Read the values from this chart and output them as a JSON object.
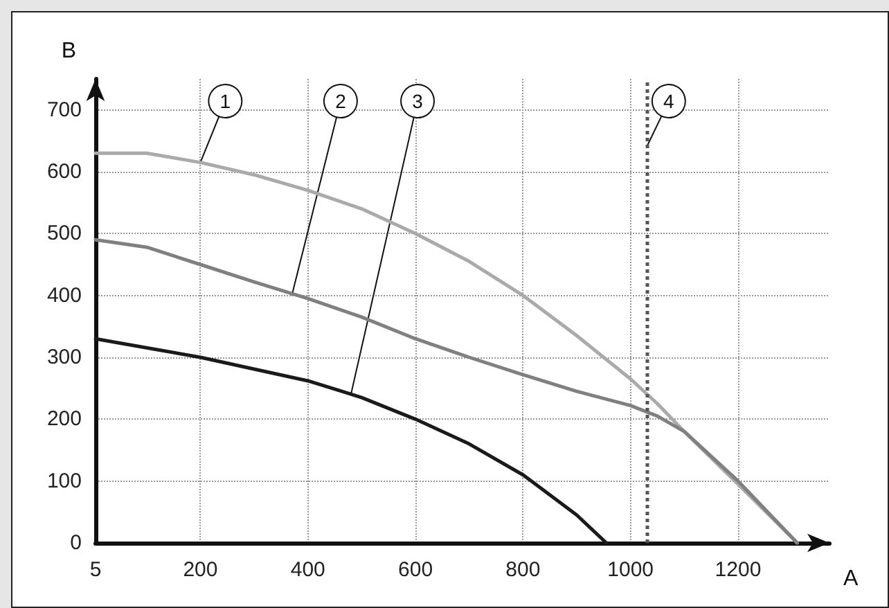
{
  "chart_data": {
    "type": "line",
    "xlabel": "A",
    "ylabel": "B",
    "xlim": [
      5,
      1370
    ],
    "xticks": [
      5,
      200,
      400,
      600,
      800,
      1000,
      1200
    ],
    "ylim": [
      0,
      750
    ],
    "yticks": [
      0,
      100,
      200,
      300,
      400,
      500,
      600,
      700
    ],
    "grid": true,
    "marker": "none",
    "line_style": "solid",
    "series": [
      {
        "color": "#aaaaaa",
        "x": [
          5,
          100,
          200,
          300,
          400,
          500,
          600,
          700,
          800,
          900,
          1000,
          1050,
          1100,
          1200,
          1310
        ],
        "values": [
          630,
          630,
          615,
          595,
          570,
          540,
          500,
          455,
          400,
          335,
          265,
          225,
          180,
          95,
          0
        ]
      },
      {
        "color": "#808080",
        "x": [
          5,
          100,
          200,
          300,
          400,
          500,
          600,
          700,
          800,
          900,
          1000,
          1050,
          1100,
          1200,
          1310
        ],
        "values": [
          490,
          478,
          450,
          422,
          395,
          365,
          330,
          300,
          272,
          245,
          222,
          205,
          180,
          100,
          0
        ]
      },
      {
        "color": "#1a1a1a",
        "x": [
          5,
          200,
          400,
          500,
          600,
          700,
          800,
          900,
          955
        ],
        "values": [
          330,
          300,
          262,
          235,
          200,
          160,
          110,
          45,
          0
        ]
      }
    ],
    "ref_lines": [
      {
        "axis": "x",
        "value": 1030,
        "line_style": "dotted",
        "color": "#555555"
      }
    ],
    "annotations": [
      {
        "text": "1",
        "x": 200,
        "y": 615
      },
      {
        "text": "2",
        "x": 370,
        "y": 400
      },
      {
        "text": "3",
        "x": 480,
        "y": 240
      },
      {
        "text": "4",
        "x": 1030,
        "y": 640
      }
    ]
  }
}
